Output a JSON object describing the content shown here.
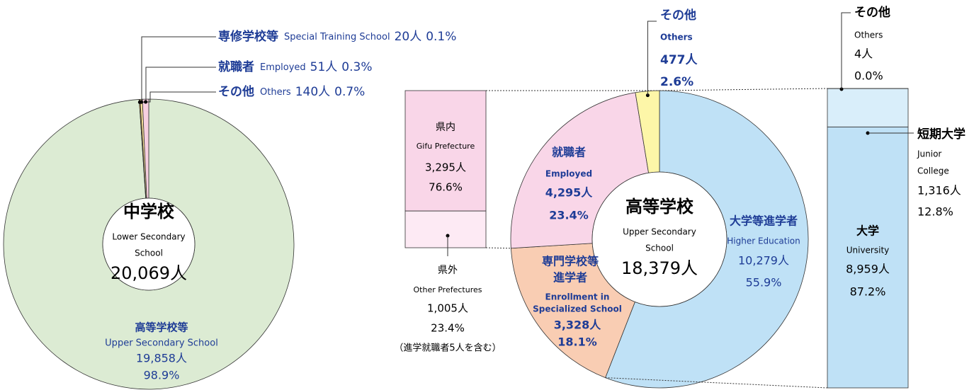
{
  "chart_data": [
    {
      "type": "donut",
      "title": "中学校",
      "subtitle": [
        "Lower Secondary",
        "School"
      ],
      "total": 20069,
      "total_label": "20,069人",
      "categories": [
        "高等学校等",
        "専修学校等",
        "就職者",
        "その他"
      ],
      "categories_en": [
        "Upper Secondary School",
        "Special Training School",
        "Employed",
        "Others"
      ],
      "values": [
        19858,
        20,
        51,
        140
      ],
      "value_labels": [
        "19,858人",
        "20人",
        "51人",
        "140人"
      ],
      "percents": [
        98.9,
        0.1,
        0.3,
        0.7
      ],
      "percent_labels": [
        "98.9%",
        "0.1%",
        "0.3%",
        "0.7%"
      ],
      "colors": [
        "#dcebd3",
        "#f0a030",
        "#f7e09a",
        "#f7cfe0"
      ]
    },
    {
      "type": "stacked-column",
      "categories": [
        "県内",
        "県外"
      ],
      "categories_en": [
        "Gifu Prefecture",
        "Other Prefectures"
      ],
      "values": [
        3295,
        1005
      ],
      "value_labels": [
        "3,295人",
        "1,005人"
      ],
      "percents": [
        76.6,
        23.4
      ],
      "percent_labels": [
        "76.6%",
        "23.4%"
      ],
      "colors": [
        "#f9d6e8",
        "#fdeaf4"
      ],
      "note": "（進学就職者5人を含む）"
    },
    {
      "type": "donut",
      "title": "高等学校",
      "subtitle": [
        "Upper Secondary",
        "School"
      ],
      "total": 18379,
      "total_label": "18,379人",
      "categories": [
        "大学等進学者",
        [
          "専門学校等",
          "進学者"
        ],
        "就職者",
        "その他"
      ],
      "categories_en": [
        "Higher Education",
        [
          "Enrollment in",
          "Specialized School"
        ],
        "Employed",
        "Others"
      ],
      "values": [
        10279,
        3328,
        4295,
        477
      ],
      "value_labels": [
        "10,279人",
        "3,328人",
        "4,295人",
        "477人"
      ],
      "percents": [
        55.9,
        18.1,
        23.4,
        2.6
      ],
      "percent_labels": [
        "55.9%",
        "18.1%",
        "23.4%",
        "2.6%"
      ],
      "colors": [
        "#bfe1f6",
        "#f9cdb3",
        "#f9d6e8",
        "#fdf6a8"
      ]
    },
    {
      "type": "stacked-column",
      "categories": [
        "大学",
        "短期大学",
        "その他"
      ],
      "categories_en": [
        "University",
        [
          "Junior",
          "College"
        ],
        "Others"
      ],
      "values": [
        8959,
        1316,
        4
      ],
      "value_labels": [
        "8,959人",
        "1,316人",
        "4人"
      ],
      "percents": [
        87.2,
        12.8,
        0.0
      ],
      "percent_labels": [
        "87.2%",
        "12.8%",
        "0.0%"
      ],
      "colors": [
        "#bfe1f6",
        "#d9eefa",
        "#ffffff"
      ]
    }
  ]
}
